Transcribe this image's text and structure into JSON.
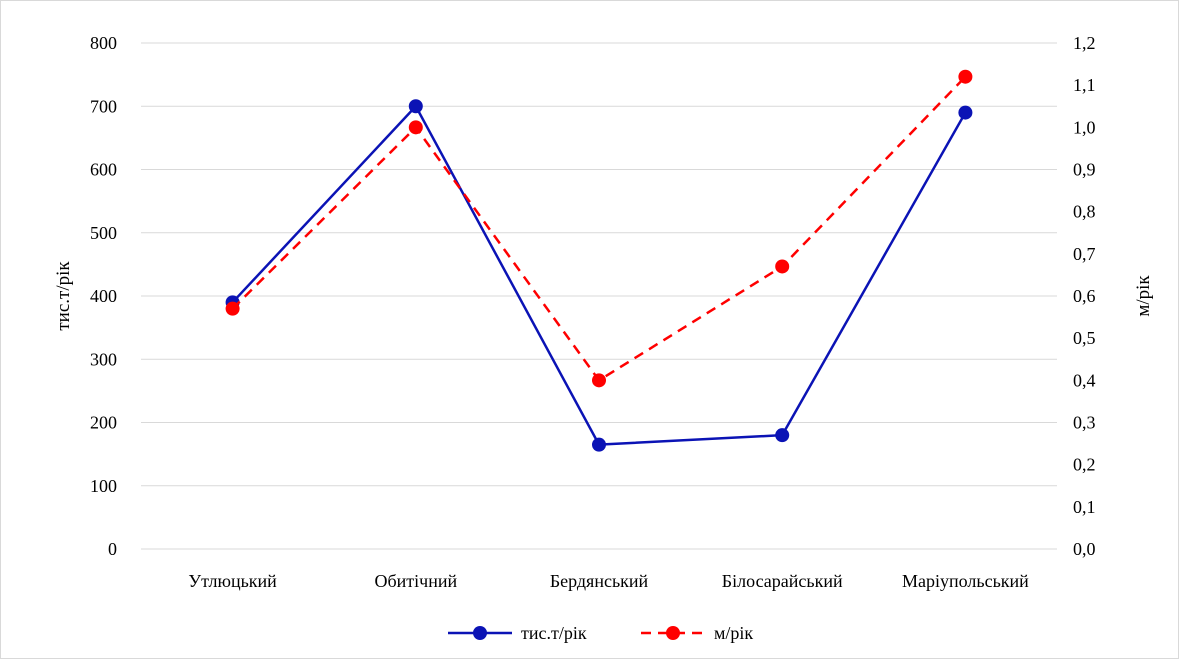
{
  "chart_data": {
    "type": "line",
    "categories": [
      "Утлюцький",
      "Обитічний",
      "Бердянський",
      "Білосарайський",
      "Маріупольський"
    ],
    "series": [
      {
        "name": "тис.т/рік",
        "axis": "left",
        "values": [
          390,
          700,
          165,
          180,
          690
        ],
        "color": "#0b13b5",
        "line_style": "solid"
      },
      {
        "name": "м/рік",
        "axis": "right",
        "values": [
          0.57,
          1.0,
          0.4,
          0.67,
          1.12
        ],
        "color": "#ff0000",
        "line_style": "dashed"
      }
    ],
    "ylabel": "тис.т/рік",
    "y2label": "м/рік",
    "ylim": [
      0,
      800
    ],
    "y_ticks": [
      0,
      100,
      200,
      300,
      400,
      500,
      600,
      700,
      800
    ],
    "y2lim": [
      0,
      1.2
    ],
    "y2_ticks": [
      "0,0",
      "0,1",
      "0,2",
      "0,3",
      "0,4",
      "0,5",
      "0,6",
      "0,7",
      "0,8",
      "0,9",
      "1,0",
      "1,1",
      "1,2"
    ],
    "grid": true,
    "legend_position": "bottom"
  }
}
